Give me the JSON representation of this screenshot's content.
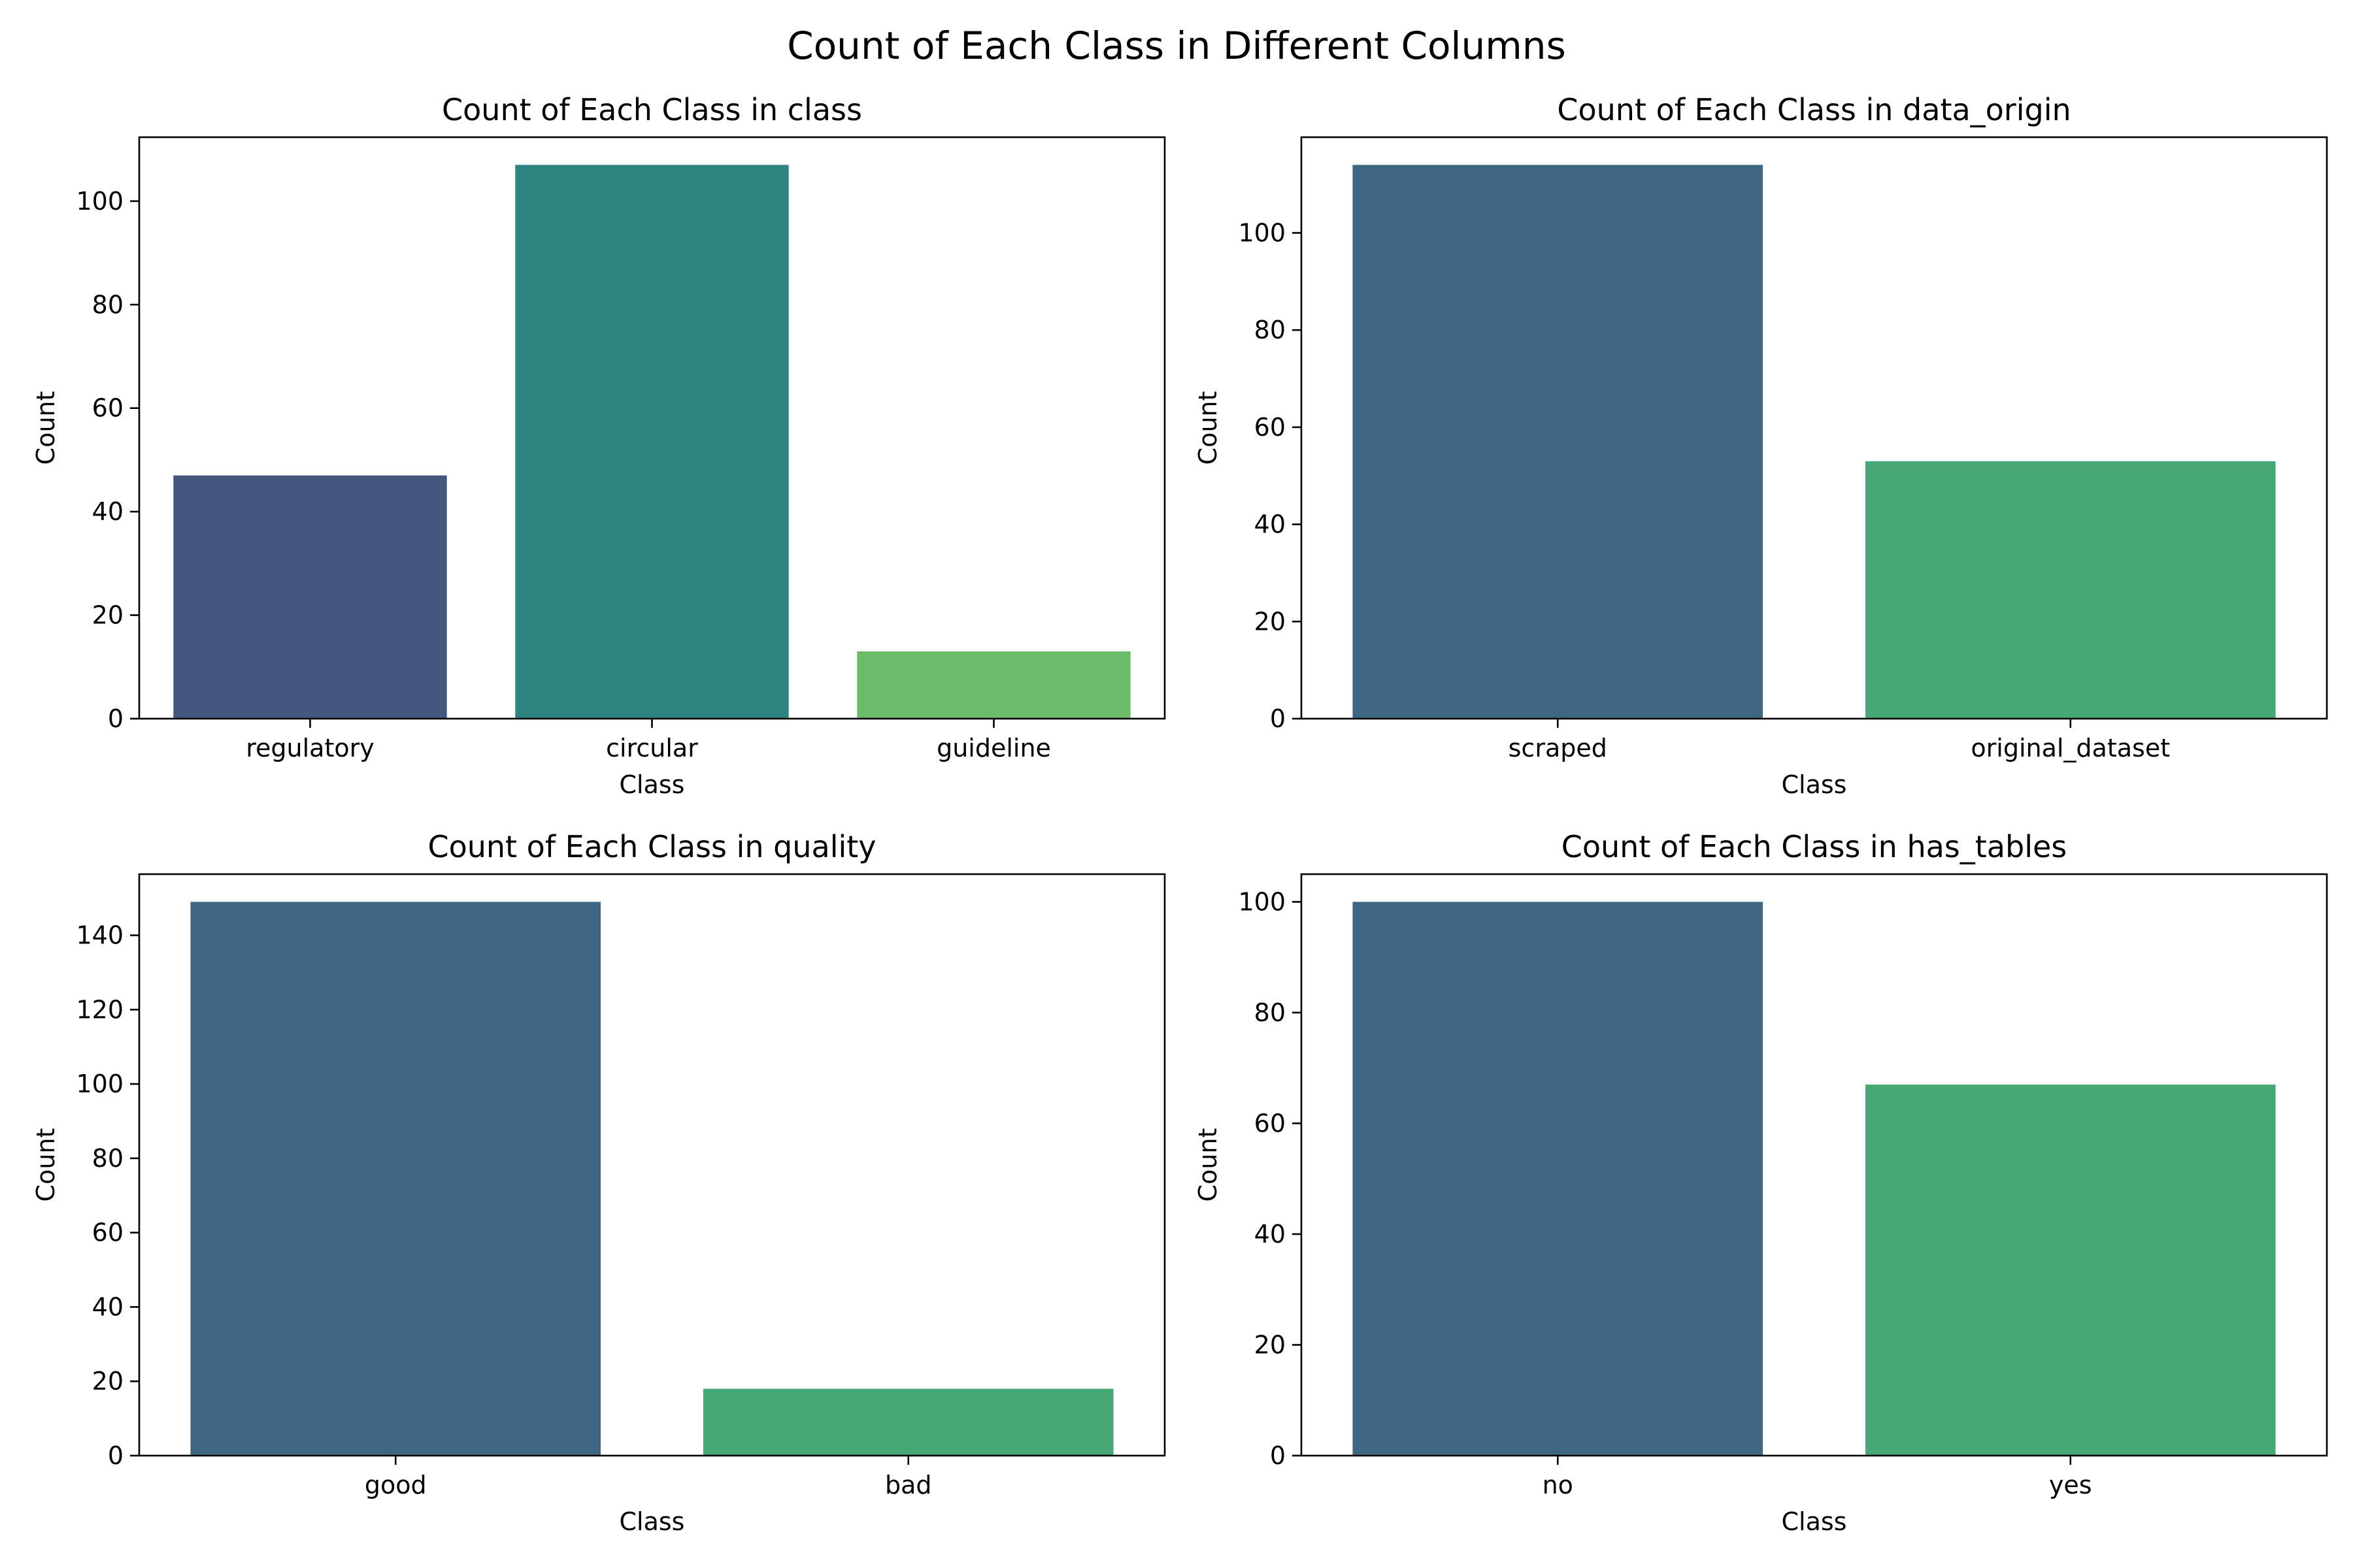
{
  "figure": {
    "suptitle": "Count of Each Class in Different Columns"
  },
  "chart_data": [
    {
      "type": "bar",
      "title": "Count of Each Class in class",
      "xlabel": "Class",
      "ylabel": "Count",
      "categories": [
        "regulatory",
        "circular",
        "guideline"
      ],
      "values": [
        47,
        107,
        13
      ],
      "colors": [
        "#46577f",
        "#2e847f",
        "#6bbb6b"
      ],
      "ylim": [
        0,
        112.35
      ],
      "yticks": [
        0,
        20,
        40,
        60,
        80,
        100
      ],
      "grid": false
    },
    {
      "type": "bar",
      "title": "Count of Each Class in data_origin",
      "xlabel": "Class",
      "ylabel": "Count",
      "categories": [
        "scraped",
        "original_dataset"
      ],
      "values": [
        114,
        53
      ],
      "colors": [
        "#3f6682",
        "#47a876"
      ],
      "ylim": [
        0,
        119.7
      ],
      "yticks": [
        0,
        20,
        40,
        60,
        80,
        100
      ],
      "grid": false
    },
    {
      "type": "bar",
      "title": "Count of Each Class in quality",
      "xlabel": "Class",
      "ylabel": "Count",
      "categories": [
        "good",
        "bad"
      ],
      "values": [
        149,
        18
      ],
      "colors": [
        "#3f6682",
        "#47a876"
      ],
      "ylim": [
        0,
        156.45
      ],
      "yticks": [
        0,
        20,
        40,
        60,
        80,
        100,
        120,
        140
      ],
      "grid": false
    },
    {
      "type": "bar",
      "title": "Count of Each Class in has_tables",
      "xlabel": "Class",
      "ylabel": "Count",
      "categories": [
        "no",
        "yes"
      ],
      "values": [
        100,
        67
      ],
      "colors": [
        "#3f6682",
        "#47a876"
      ],
      "ylim": [
        0,
        105
      ],
      "yticks": [
        0,
        20,
        40,
        60,
        80,
        100
      ],
      "grid": false
    }
  ]
}
